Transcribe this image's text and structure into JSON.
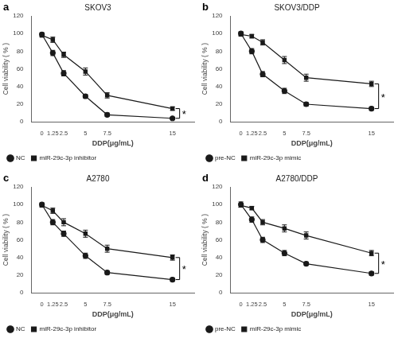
{
  "chart_data": [
    {
      "type": "line",
      "title": "SKOV3",
      "xlabel": "DDP(μg/mL)",
      "ylabel": "Cell viability ( % )",
      "x": [
        0,
        1.25,
        2.5,
        5,
        7.5,
        15
      ],
      "xlim": [
        -1.2,
        17.5
      ],
      "xticks": [
        0,
        1.25,
        2.5,
        5,
        7.5,
        15
      ],
      "ylim": [
        0,
        120
      ],
      "yticks": [
        0,
        20,
        40,
        60,
        80,
        100,
        120
      ],
      "grid": false,
      "legend": "lower left",
      "series": [
        {
          "name": "NC",
          "color": "#1a1a1a",
          "marker": "circle",
          "values": [
            99,
            78,
            55,
            29,
            8,
            4
          ],
          "errors": [
            2,
            3,
            3,
            2,
            2,
            1
          ]
        },
        {
          "name": "miR-29c-3p inhibitor",
          "color": "#1a1a1a",
          "marker": "square",
          "values": [
            98,
            93,
            76,
            57,
            30,
            15
          ],
          "errors": [
            2,
            3,
            3,
            4,
            3,
            2
          ]
        }
      ],
      "annotations": [
        {
          "text": "a"
        },
        {
          "text": "*",
          "x": 15
        }
      ]
    },
    {
      "type": "line",
      "title": "SKOV3/DDP",
      "xlabel": "DDP(μg/mL)",
      "ylabel": "Cell viability ( % )",
      "x": [
        0,
        1.25,
        2.5,
        5,
        7.5,
        15
      ],
      "xlim": [
        -1.2,
        17.5
      ],
      "xticks": [
        0,
        1.25,
        2.5,
        5,
        7.5,
        15
      ],
      "ylim": [
        0,
        120
      ],
      "yticks": [
        0,
        20,
        40,
        60,
        80,
        100,
        120
      ],
      "grid": false,
      "legend": "lower left",
      "series": [
        {
          "name": "pre-NC",
          "color": "#1a1a1a",
          "marker": "circle",
          "values": [
            100,
            80,
            54,
            35,
            20,
            15
          ],
          "errors": [
            2,
            3,
            3,
            3,
            2,
            2
          ]
        },
        {
          "name": "miR-29c-3p mimic",
          "color": "#1a1a1a",
          "marker": "square",
          "values": [
            99,
            97,
            90,
            70,
            50,
            43
          ],
          "errors": [
            2,
            2,
            3,
            4,
            4,
            3
          ]
        }
      ],
      "annotations": [
        {
          "text": "b"
        },
        {
          "text": "*",
          "x": 15
        }
      ]
    },
    {
      "type": "line",
      "title": "A2780",
      "xlabel": "DDP(μg/mL)",
      "ylabel": "Cell viability ( % )",
      "x": [
        0,
        1.25,
        2.5,
        5,
        7.5,
        15
      ],
      "xlim": [
        -1.2,
        17.5
      ],
      "xticks": [
        0,
        1.25,
        2.5,
        5,
        7.5,
        15
      ],
      "ylim": [
        0,
        120
      ],
      "yticks": [
        0,
        20,
        40,
        60,
        80,
        100,
        120
      ],
      "grid": false,
      "legend": "lower left",
      "series": [
        {
          "name": "NC",
          "color": "#1a1a1a",
          "marker": "circle",
          "values": [
            100,
            80,
            67,
            42,
            23,
            15
          ],
          "errors": [
            2,
            3,
            3,
            3,
            2,
            2
          ]
        },
        {
          "name": "miR-29c-3p inhibitor",
          "color": "#1a1a1a",
          "marker": "square",
          "values": [
            99,
            93,
            80,
            67,
            50,
            40
          ],
          "errors": [
            2,
            3,
            4,
            4,
            4,
            3
          ]
        }
      ],
      "annotations": [
        {
          "text": "c"
        },
        {
          "text": "*",
          "x": 15
        }
      ]
    },
    {
      "type": "line",
      "title": "A2780/DDP",
      "xlabel": "DDP(μg/mL)",
      "ylabel": "Cell viability ( % )",
      "x": [
        0,
        1.25,
        2.5,
        5,
        7.5,
        15
      ],
      "xlim": [
        -1.2,
        17.5
      ],
      "xticks": [
        0,
        1.25,
        2.5,
        5,
        7.5,
        15
      ],
      "ylim": [
        0,
        120
      ],
      "yticks": [
        0,
        20,
        40,
        60,
        80,
        100,
        120
      ],
      "grid": false,
      "legend": "lower left",
      "series": [
        {
          "name": "pre-NC",
          "color": "#1a1a1a",
          "marker": "circle",
          "values": [
            100,
            83,
            60,
            45,
            33,
            22
          ],
          "errors": [
            3,
            3,
            3,
            3,
            2,
            2
          ]
        },
        {
          "name": "miR-29c-3p mimic",
          "color": "#1a1a1a",
          "marker": "square",
          "values": [
            99,
            96,
            80,
            73,
            65,
            45
          ],
          "errors": [
            2,
            2,
            3,
            4,
            4,
            3
          ]
        }
      ],
      "annotations": [
        {
          "text": "d"
        },
        {
          "text": "*",
          "x": 15
        }
      ]
    }
  ]
}
